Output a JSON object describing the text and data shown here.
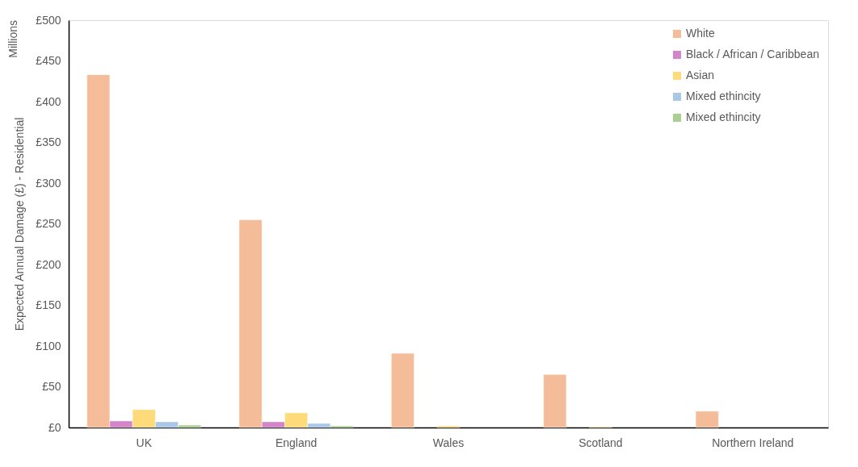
{
  "chart_data": {
    "type": "bar",
    "ylabel": "Expected Annual Damage (£) - Residential",
    "annotations": [
      "Millions"
    ],
    "categories": [
      "UK",
      "England",
      "Wales",
      "Scotland",
      "Northern Ireland"
    ],
    "series": [
      {
        "name": "White",
        "color": "#f4bc98",
        "values": [
          433,
          255,
          91,
          65,
          20
        ]
      },
      {
        "name": "Black / African / Caribbean",
        "color": "#d484c8",
        "values": [
          8,
          7,
          null,
          null,
          null
        ]
      },
      {
        "name": "Asian",
        "color": "#fedb7a",
        "values": [
          22,
          18,
          2,
          1,
          null
        ]
      },
      {
        "name": "Mixed ethincity",
        "color": "#a9c8e8",
        "values": [
          7,
          5,
          null,
          null,
          null
        ]
      },
      {
        "name": "Mixed ethincity",
        "color": "#a9d08e",
        "values": [
          3,
          2,
          null,
          null,
          null
        ]
      }
    ],
    "ylim": [
      0,
      500
    ],
    "yticks": [
      {
        "value": 0,
        "label": "£0"
      },
      {
        "value": 50,
        "label": "£50"
      },
      {
        "value": 100,
        "label": "£100"
      },
      {
        "value": 150,
        "label": "£150"
      },
      {
        "value": 200,
        "label": "£200"
      },
      {
        "value": 250,
        "label": "£250"
      },
      {
        "value": 300,
        "label": "£300"
      },
      {
        "value": 350,
        "label": "£350"
      },
      {
        "value": 400,
        "label": "£400"
      },
      {
        "value": 450,
        "label": "£450"
      },
      {
        "value": 500,
        "label": "£500"
      }
    ],
    "grid": false,
    "legend": "top right"
  }
}
